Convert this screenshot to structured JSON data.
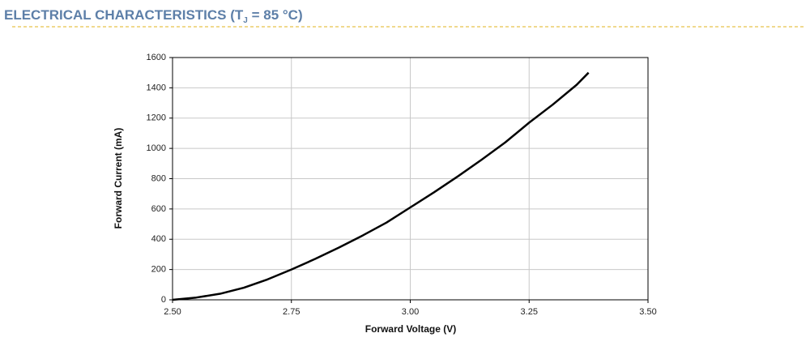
{
  "header": {
    "title_before": "ELECTRICAL CHARACTERISTICS (T",
    "title_subscript": "J",
    "title_after": " = 85 °C)"
  },
  "chart_data": {
    "type": "line",
    "x_label": "Forward Voltage (V)",
    "y_label": "Forward Current (mA)",
    "x": [
      2.5,
      2.55,
      2.6,
      2.65,
      2.7,
      2.75,
      2.8,
      2.85,
      2.9,
      2.95,
      3.0,
      3.05,
      3.1,
      3.15,
      3.2,
      3.25,
      3.3,
      3.35,
      3.375
    ],
    "series": [
      {
        "color": "#000000",
        "values": [
          0,
          15,
          40,
          80,
          135,
          200,
          270,
          345,
          425,
          510,
          610,
          710,
          815,
          925,
          1040,
          1170,
          1290,
          1420,
          1500
        ]
      }
    ],
    "xlim": [
      2.5,
      3.5
    ],
    "xticks": [
      {
        "value": 2.5,
        "label": "2.50"
      },
      2.75,
      {
        "value": 3.0,
        "label": "3.00"
      },
      3.25,
      {
        "value": 3.5,
        "label": "3.50"
      }
    ],
    "ylim": [
      0,
      1600
    ],
    "yticks": [
      0,
      200,
      400,
      600,
      800,
      1000,
      1200,
      1400,
      1600
    ],
    "grid": true
  }
}
